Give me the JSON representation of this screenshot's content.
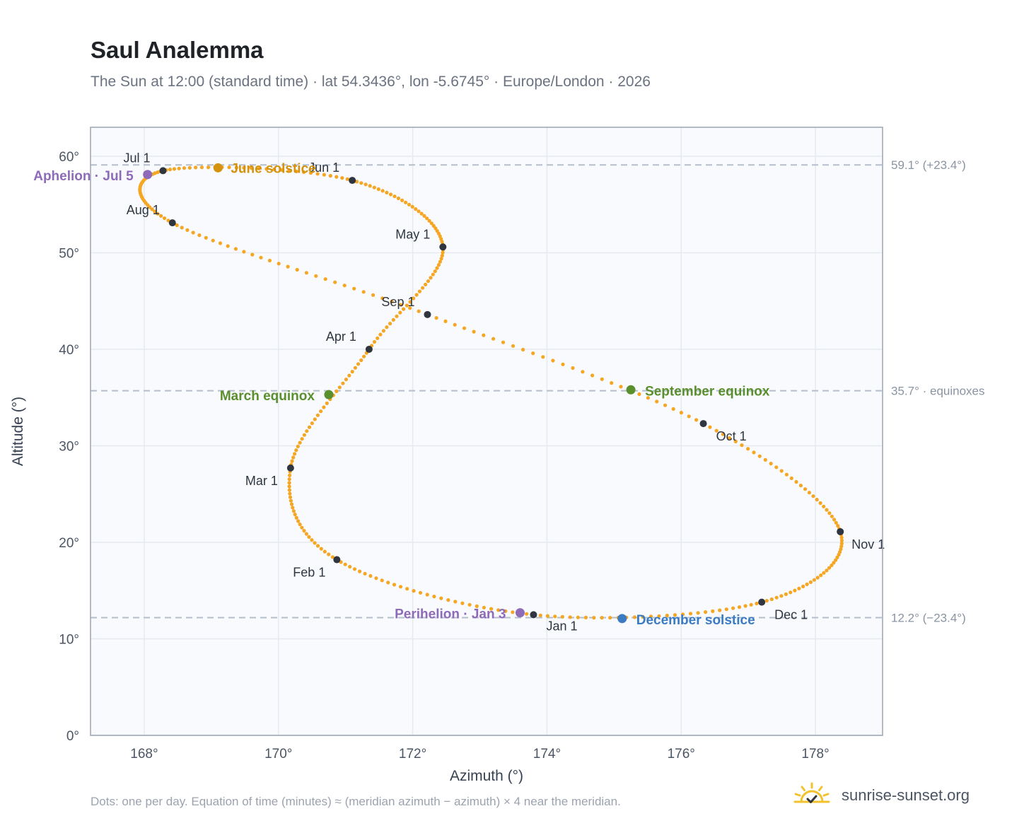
{
  "header": {
    "title": "Saul Analemma",
    "subtitle": "The Sun at 12:00 (standard time) · lat 54.3436°, lon -5.6745° · Europe/London · 2026"
  },
  "footer": {
    "note": "Dots: one per day. Equation of time (minutes) ≈ (meridian azimuth − azimuth) × 4 near the meridian.",
    "brand": "sunrise-sunset.org",
    "brand_icon": "sun-logo-icon"
  },
  "colors": {
    "path": "#f5a623",
    "month_marker": "#2f3640",
    "june_solstice": "#d4920f",
    "december_solstice": "#3b7bc4",
    "equinox": "#5a8f2e",
    "apsis": "#8e6bb8",
    "ref_line": "#b4bfcb",
    "grid": "#e6eaf0",
    "plot_bg": "#f8fafd",
    "frame": "#9aa5b4"
  },
  "chart_data": {
    "type": "scatter",
    "xlabel": "Azimuth (°)",
    "ylabel": "Altitude (°)",
    "xlim": [
      167.2,
      179.0
    ],
    "ylim": [
      0,
      63
    ],
    "xticks": [
      168,
      170,
      172,
      174,
      176,
      178
    ],
    "yticks": [
      0,
      10,
      20,
      30,
      40,
      50,
      60
    ],
    "tick_suffix": "°",
    "grid": true,
    "key_dates": [
      {
        "date": "Jan 1",
        "az": 173.8,
        "alt": 12.5
      },
      {
        "date": "Feb 1",
        "az": 170.87,
        "alt": 18.2
      },
      {
        "date": "Mar 1",
        "az": 170.18,
        "alt": 27.7
      },
      {
        "date": "Apr 1",
        "az": 171.35,
        "alt": 40.0
      },
      {
        "date": "May 1",
        "az": 172.45,
        "alt": 50.6
      },
      {
        "date": "Jun 1",
        "az": 171.1,
        "alt": 57.5
      },
      {
        "date": "Jul 1",
        "az": 168.28,
        "alt": 58.5
      },
      {
        "date": "Aug 1",
        "az": 168.42,
        "alt": 53.1
      },
      {
        "date": "Sep 1",
        "az": 172.22,
        "alt": 43.6
      },
      {
        "date": "Oct 1",
        "az": 176.33,
        "alt": 32.3
      },
      {
        "date": "Nov 1",
        "az": 178.37,
        "alt": 21.1
      },
      {
        "date": "Dec 1",
        "az": 177.2,
        "alt": 13.8
      }
    ],
    "events": [
      {
        "label": "June solstice",
        "az": 169.1,
        "alt": 58.8,
        "color": "#d4920f"
      },
      {
        "label": "December solstice",
        "az": 175.12,
        "alt": 12.1,
        "color": "#3b7bc4"
      },
      {
        "label": "March equinox",
        "az": 170.75,
        "alt": 35.3,
        "color": "#5a8f2e"
      },
      {
        "label": "September equinox",
        "az": 175.25,
        "alt": 35.8,
        "color": "#5a8f2e"
      },
      {
        "label": "Aphelion · Jul 5",
        "az": 168.05,
        "alt": 58.1,
        "color": "#8e6bb8"
      },
      {
        "label": "Perihelion · Jan 3",
        "az": 173.6,
        "alt": 12.7,
        "color": "#8e6bb8"
      }
    ],
    "reference_lines": [
      {
        "alt": 59.1,
        "label": "59.1° (+23.4°)"
      },
      {
        "alt": 35.7,
        "label": "35.7° · equinoxes"
      },
      {
        "alt": 12.2,
        "label": "12.2° (−23.4°)"
      }
    ]
  }
}
